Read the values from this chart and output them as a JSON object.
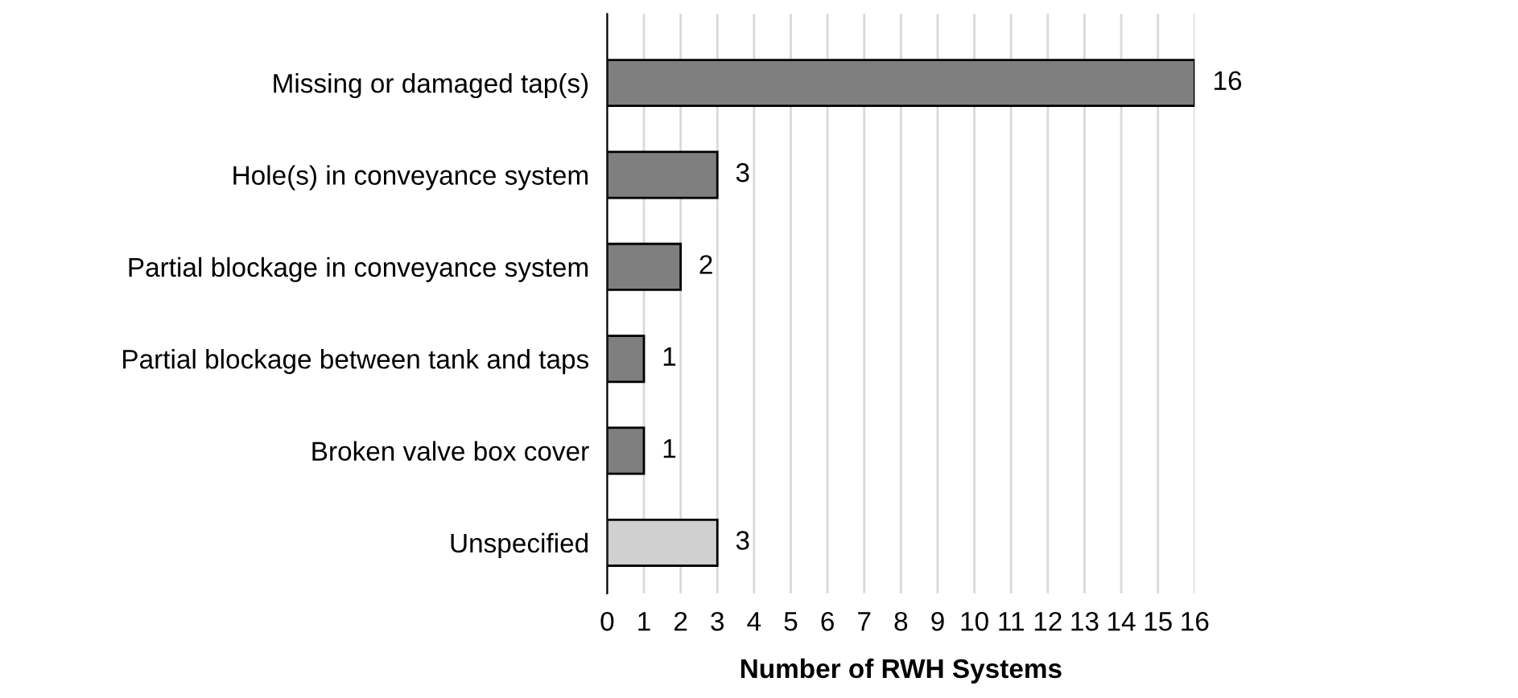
{
  "chart_data": {
    "type": "bar",
    "orientation": "horizontal",
    "xlabel": "Number of RWH Systems",
    "categories": [
      "Missing or damaged tap(s)",
      "Hole(s) in conveyance system",
      "Partial blockage in conveyance system",
      "Partial blockage between tank and taps",
      "Broken valve box cover",
      "Unspecified"
    ],
    "values": [
      16,
      3,
      2,
      1,
      1,
      3
    ],
    "colors": [
      "#7f7f7f",
      "#7f7f7f",
      "#7f7f7f",
      "#7f7f7f",
      "#7f7f7f",
      "#d0d0d0"
    ],
    "xlim": [
      0,
      16
    ],
    "xticks": [
      0,
      1,
      2,
      3,
      4,
      5,
      6,
      7,
      8,
      9,
      10,
      11,
      12,
      13,
      14,
      15,
      16
    ],
    "grid": "x",
    "data_labels": true,
    "legend": false
  }
}
